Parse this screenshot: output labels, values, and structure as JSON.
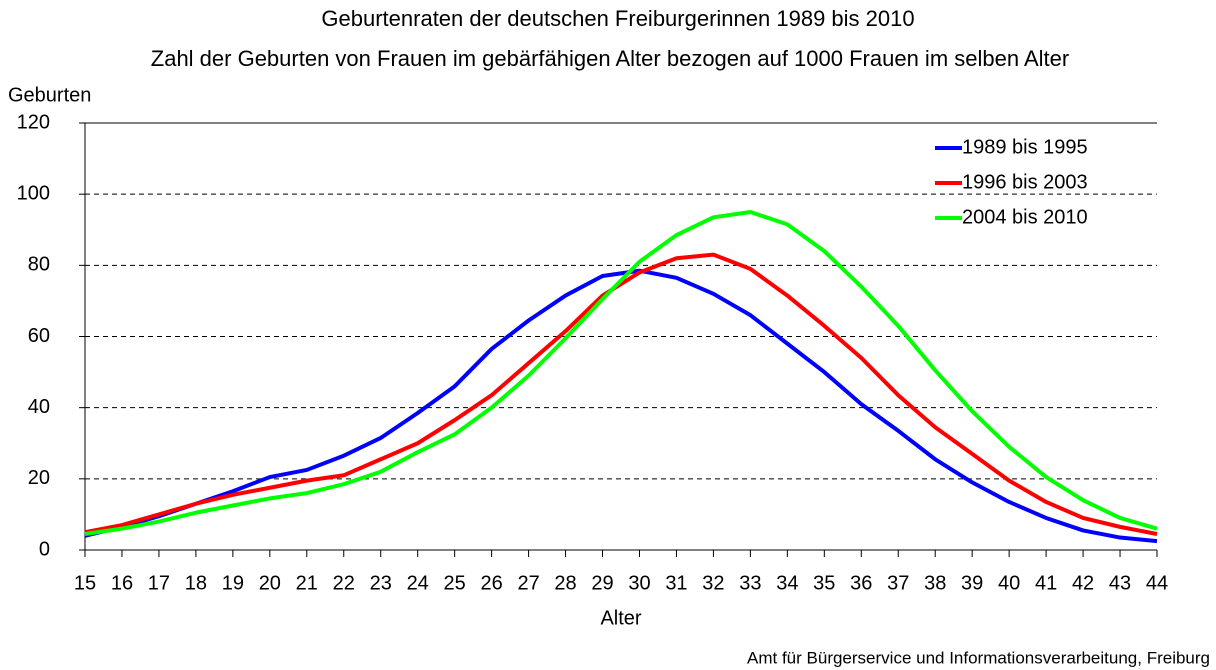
{
  "chart_data": {
    "type": "line",
    "title": "Geburtenraten der deutschen Freiburgerinnen 1989 bis 2010",
    "subtitle": "Zahl der Geburten von Frauen im gebärfähigen Alter bezogen auf 1000 Frauen im selben Alter",
    "y_label": "Geburten",
    "x_label": "Alter",
    "source": "Amt für Bürgerservice und Informationsverarbeitung, Freiburg",
    "x": [
      15,
      16,
      17,
      18,
      19,
      20,
      21,
      22,
      23,
      24,
      25,
      26,
      27,
      28,
      29,
      30,
      31,
      32,
      33,
      34,
      35,
      36,
      37,
      38,
      39,
      40,
      41,
      42,
      43,
      44
    ],
    "xlim": [
      15,
      44
    ],
    "xticks": [
      15,
      16,
      17,
      18,
      19,
      20,
      21,
      22,
      23,
      24,
      25,
      26,
      27,
      28,
      29,
      30,
      31,
      32,
      33,
      34,
      35,
      36,
      37,
      38,
      39,
      40,
      41,
      42,
      43,
      44
    ],
    "ylim": [
      0,
      120
    ],
    "yticks": [
      0,
      20,
      40,
      60,
      80,
      100,
      120
    ],
    "grid": true,
    "legend": "top-right",
    "series": [
      {
        "name": "1989 bis 1995",
        "color": "#0000ff",
        "values": [
          4,
          6.5,
          9.5,
          13,
          16.5,
          20.5,
          22.5,
          26.5,
          31.5,
          38.5,
          46,
          56.5,
          64.5,
          71.5,
          77,
          78.5,
          76.5,
          72,
          66,
          58,
          50,
          41,
          33.5,
          25.5,
          19,
          13.5,
          9,
          5.5,
          3.5,
          2.5
        ]
      },
      {
        "name": "1996 bis 2003",
        "color": "#ff0000",
        "values": [
          5,
          7,
          10,
          13,
          15.5,
          17.5,
          19.5,
          21,
          25.5,
          30,
          36.5,
          43.5,
          52.5,
          61.5,
          71.5,
          78,
          82,
          83,
          79,
          71.5,
          63,
          54,
          43.5,
          34.5,
          27,
          19.5,
          13.5,
          9,
          6.5,
          4.5
        ]
      },
      {
        "name": "2004 bis 2010",
        "color": "#00ff00",
        "values": [
          4.5,
          6,
          8,
          10.5,
          12.5,
          14.5,
          16,
          18.5,
          22,
          27.5,
          32.5,
          40,
          49,
          59.5,
          70.5,
          81,
          88.5,
          93.5,
          95,
          91.5,
          84,
          74,
          63,
          50.5,
          39,
          29,
          20.5,
          14,
          9,
          6
        ]
      }
    ]
  }
}
